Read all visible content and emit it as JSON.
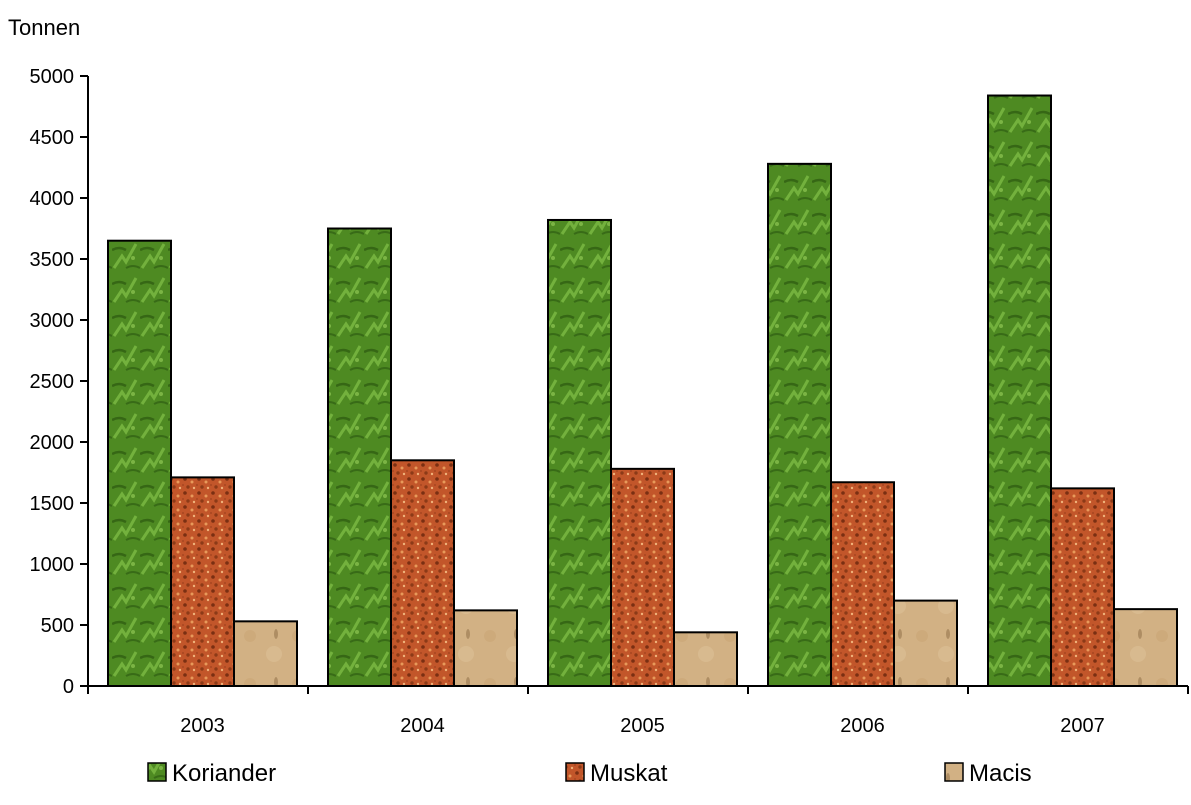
{
  "chart_data": {
    "type": "bar",
    "ylabel": "Tonnen",
    "categories": [
      "2003",
      "2004",
      "2005",
      "2006",
      "2007"
    ],
    "ylim": [
      0,
      5000
    ],
    "yticks": [
      0,
      500,
      1000,
      1500,
      2000,
      2500,
      3000,
      3500,
      4000,
      4500,
      5000
    ],
    "grid": false,
    "legend_position": "bottom",
    "series": [
      {
        "name": "Koriander",
        "color": "#4e8a22",
        "values": [
          3650,
          3750,
          3820,
          4280,
          4840
        ]
      },
      {
        "name": "Muskat",
        "color": "#c2562a",
        "values": [
          1710,
          1850,
          1780,
          1670,
          1620
        ]
      },
      {
        "name": "Macis",
        "color": "#d2b184",
        "values": [
          530,
          620,
          440,
          700,
          630
        ]
      }
    ]
  }
}
